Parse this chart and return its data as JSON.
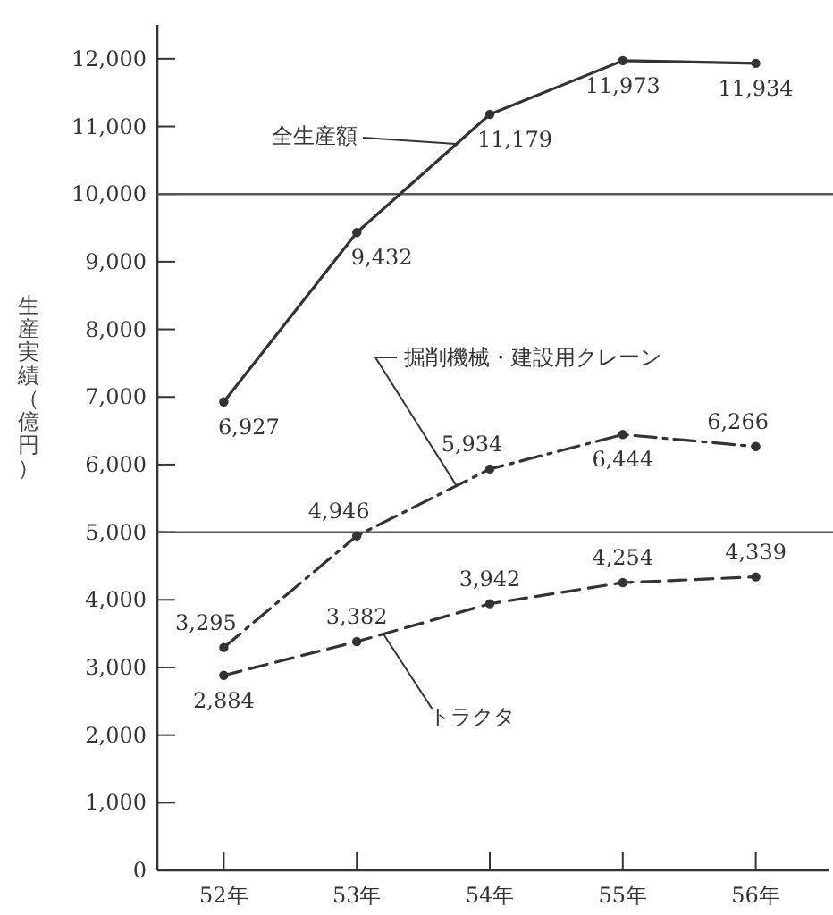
{
  "chart_data": {
    "type": "line",
    "ylabel": "生産実績（億円）",
    "categories": [
      "52年",
      "53年",
      "54年",
      "55年",
      "56年"
    ],
    "series": [
      {
        "name": "全生産額",
        "color": "#333333",
        "line_style": "solid",
        "values": [
          6927,
          9432,
          11179,
          11973,
          11934
        ],
        "value_labels": [
          "6,927",
          "9,432",
          "11,179",
          "11,973",
          "11,934"
        ]
      },
      {
        "name": "掘削機械・建設用クレーン",
        "color": "#333333",
        "line_style": "dashdot",
        "values": [
          3295,
          4946,
          5934,
          6444,
          6266
        ],
        "value_labels": [
          "3,295",
          "4,946",
          "5,934",
          "6,444",
          "6,266"
        ]
      },
      {
        "name": "トラクタ",
        "color": "#333333",
        "line_style": "dashed",
        "values": [
          2884,
          3382,
          3942,
          4254,
          4339
        ],
        "value_labels": [
          "2,884",
          "3,382",
          "3,942",
          "4,254",
          "4,339"
        ]
      }
    ],
    "ylim": [
      0,
      12500
    ],
    "yticks": [
      0,
      {
        "value": 1000,
        "label": "1,000"
      },
      {
        "value": 2000,
        "label": "2,000"
      },
      {
        "value": 3000,
        "label": "3,000"
      },
      {
        "value": 4000,
        "label": "4,000"
      },
      {
        "value": 5000,
        "label": "5,000"
      },
      {
        "value": 6000,
        "label": "6,000"
      },
      {
        "value": 7000,
        "label": "7,000"
      },
      {
        "value": 8000,
        "label": "8,000"
      },
      {
        "value": 9000,
        "label": "9,000"
      },
      {
        "value": 10000,
        "label": "10,000"
      },
      {
        "value": 11000,
        "label": "11,000"
      },
      {
        "value": 12000,
        "label": "12,000"
      }
    ],
    "ref_lines": [
      {
        "axis": "y",
        "value": 10000,
        "color": "#555555"
      },
      {
        "axis": "y",
        "value": 5000,
        "color": "#555555"
      }
    ],
    "marker": "circle",
    "grid": false
  }
}
